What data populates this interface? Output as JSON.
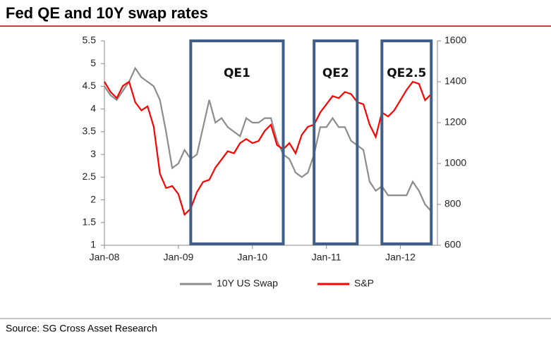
{
  "title": "Fed QE and 10Y swap rates",
  "source": "Source: SG Cross Asset Research",
  "chart_data": {
    "type": "line",
    "x": [
      "Jan-08",
      "Feb-08",
      "Mar-08",
      "Apr-08",
      "May-08",
      "Jun-08",
      "Jul-08",
      "Aug-08",
      "Sep-08",
      "Oct-08",
      "Nov-08",
      "Dec-08",
      "Jan-09",
      "Feb-09",
      "Mar-09",
      "Apr-09",
      "May-09",
      "Jun-09",
      "Jul-09",
      "Aug-09",
      "Sep-09",
      "Oct-09",
      "Nov-09",
      "Dec-09",
      "Jan-10",
      "Feb-10",
      "Mar-10",
      "Apr-10",
      "May-10",
      "Jun-10",
      "Jul-10",
      "Aug-10",
      "Sep-10",
      "Oct-10",
      "Nov-10",
      "Dec-10",
      "Jan-11",
      "Feb-11",
      "Mar-11",
      "Apr-11",
      "May-11",
      "Jun-11",
      "Jul-11",
      "Aug-11",
      "Sep-11",
      "Oct-11",
      "Nov-11",
      "Dec-11",
      "Jan-12",
      "Feb-12",
      "Mar-12",
      "Apr-12",
      "May-12",
      "Jun-12"
    ],
    "series": [
      {
        "name": "10Y US Swap",
        "color": "#8c8c8c",
        "axis": "y",
        "values": [
          4.5,
          4.3,
          4.2,
          4.4,
          4.6,
          4.9,
          4.7,
          4.6,
          4.5,
          4.2,
          3.5,
          2.7,
          2.8,
          3.1,
          2.9,
          3.0,
          3.6,
          4.2,
          3.7,
          3.8,
          3.6,
          3.5,
          3.4,
          3.8,
          3.7,
          3.7,
          3.8,
          3.8,
          3.3,
          3.0,
          2.9,
          2.6,
          2.5,
          2.6,
          3.0,
          3.6,
          3.6,
          3.8,
          3.6,
          3.6,
          3.3,
          3.2,
          3.1,
          2.4,
          2.2,
          2.3,
          2.1,
          2.1,
          2.1,
          2.1,
          2.4,
          2.2,
          1.9,
          1.75
        ]
      },
      {
        "name": "S&P",
        "color": "#ff0000",
        "axis": "y2",
        "values": [
          1400,
          1350,
          1320,
          1380,
          1400,
          1300,
          1260,
          1280,
          1180,
          950,
          880,
          890,
          850,
          750,
          780,
          860,
          910,
          920,
          980,
          1020,
          1060,
          1050,
          1100,
          1120,
          1100,
          1110,
          1160,
          1190,
          1090,
          1070,
          1100,
          1050,
          1140,
          1180,
          1190,
          1250,
          1290,
          1330,
          1320,
          1350,
          1340,
          1300,
          1290,
          1190,
          1130,
          1250,
          1230,
          1260,
          1310,
          1360,
          1400,
          1390,
          1310,
          1340
        ]
      }
    ],
    "xlim": [
      "Jan-08",
      "Jul-12"
    ],
    "xticks": [
      "Jan-08",
      "Jan-09",
      "Jan-10",
      "Jan-11",
      "Jan-12"
    ],
    "ylim": [
      1,
      5.5
    ],
    "yticks": [
      1,
      1.5,
      2,
      2.5,
      3,
      3.5,
      4,
      4.5,
      5,
      5.5
    ],
    "y2lim": [
      600,
      1600
    ],
    "y2ticks": [
      600,
      800,
      1000,
      1200,
      1400,
      1600
    ],
    "annotations": [
      {
        "label": "QE1",
        "start": "Mar-09",
        "end": "Jun-10",
        "color": "#3f5f86"
      },
      {
        "label": "QE2",
        "start": "Nov-10",
        "end": "Jun-11",
        "color": "#3f5f86"
      },
      {
        "label": "QE2.5",
        "start": "Oct-11",
        "end": "Jun-12",
        "color": "#3f5f86"
      }
    ]
  }
}
